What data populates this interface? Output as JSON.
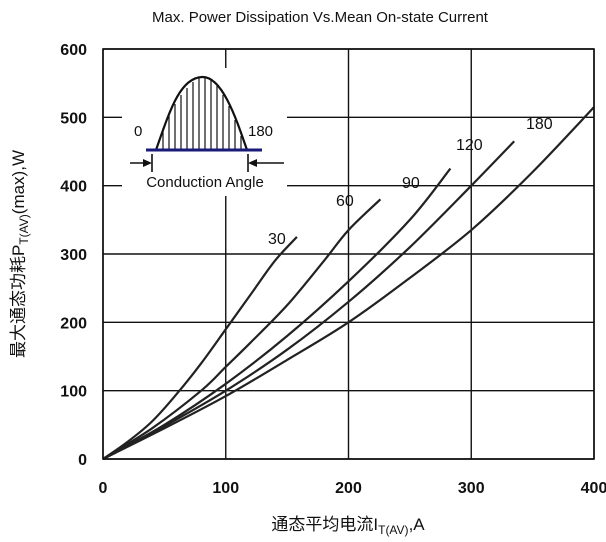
{
  "chart_data": {
    "type": "line",
    "title": "Max. Power Dissipation Vs.Mean On-state Current",
    "xlabel": "通态平均电流I<sub>T(AV)</sub>,A",
    "xlabel_main": "通态平均电流I",
    "xlabel_sub": "T(AV)",
    "xlabel_unit": ",A",
    "ylabel_main": "最大通态功耗P",
    "ylabel_sub": "T(AV)",
    "ylabel_unit": "(max),W",
    "xlim": [
      0,
      400
    ],
    "ylim": [
      0,
      600
    ],
    "x_ticks": [
      0,
      100,
      200,
      300,
      400
    ],
    "y_ticks": [
      0,
      100,
      200,
      300,
      400,
      500,
      600
    ],
    "x_tick_labels": [
      "0",
      "100",
      "200",
      "300",
      "400"
    ],
    "y_tick_labels": [
      "0",
      "100",
      "200",
      "300",
      "400",
      "500",
      "600"
    ],
    "grid": true,
    "series": [
      {
        "name": "30",
        "points": [
          [
            0,
            0
          ],
          [
            20,
            25
          ],
          [
            40,
            55
          ],
          [
            60,
            95
          ],
          [
            80,
            140
          ],
          [
            100,
            190
          ],
          [
            120,
            240
          ],
          [
            140,
            290
          ],
          [
            158,
            325
          ]
        ]
      },
      {
        "name": "60",
        "points": [
          [
            0,
            0
          ],
          [
            40,
            45
          ],
          [
            80,
            100
          ],
          [
            100,
            135
          ],
          [
            120,
            170
          ],
          [
            150,
            225
          ],
          [
            180,
            290
          ],
          [
            200,
            335
          ],
          [
            226,
            380
          ]
        ]
      },
      {
        "name": "90",
        "points": [
          [
            0,
            0
          ],
          [
            50,
            50
          ],
          [
            100,
            110
          ],
          [
            150,
            180
          ],
          [
            200,
            260
          ],
          [
            250,
            350
          ],
          [
            283,
            425
          ]
        ]
      },
      {
        "name": "120",
        "points": [
          [
            0,
            0
          ],
          [
            50,
            48
          ],
          [
            100,
            100
          ],
          [
            150,
            160
          ],
          [
            200,
            230
          ],
          [
            250,
            310
          ],
          [
            300,
            400
          ],
          [
            335,
            465
          ]
        ]
      },
      {
        "name": "180",
        "points": [
          [
            0,
            0
          ],
          [
            50,
            45
          ],
          [
            100,
            92
          ],
          [
            150,
            145
          ],
          [
            200,
            200
          ],
          [
            250,
            265
          ],
          [
            300,
            335
          ],
          [
            350,
            420
          ],
          [
            400,
            515
          ]
        ]
      }
    ],
    "series_labels": [
      "30",
      "60",
      "90",
      "120",
      "180"
    ],
    "inset": {
      "start_label": "0",
      "end_label": "180",
      "caption": "Conduction Angle"
    }
  }
}
